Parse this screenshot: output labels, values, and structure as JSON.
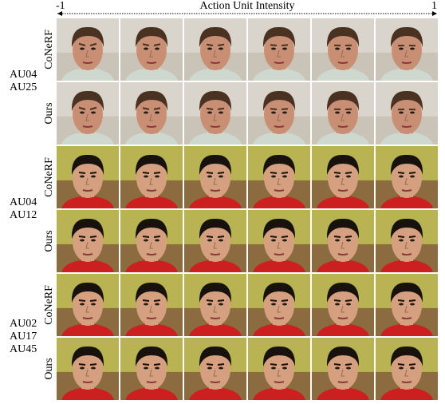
{
  "header": {
    "left": "-1",
    "title": "Action Unit Intensity",
    "right": "1"
  },
  "groups": [
    {
      "action_units": [
        "AU04",
        "AU25"
      ],
      "rows": [
        "CoNeRF",
        "Ours"
      ]
    },
    {
      "action_units": [
        "AU04",
        "AU12"
      ],
      "rows": [
        "CoNeRF",
        "Ours"
      ]
    },
    {
      "action_units": [
        "AU02",
        "AU17",
        "AU45"
      ],
      "rows": [
        "CoNeRF",
        "Ours"
      ]
    }
  ]
}
